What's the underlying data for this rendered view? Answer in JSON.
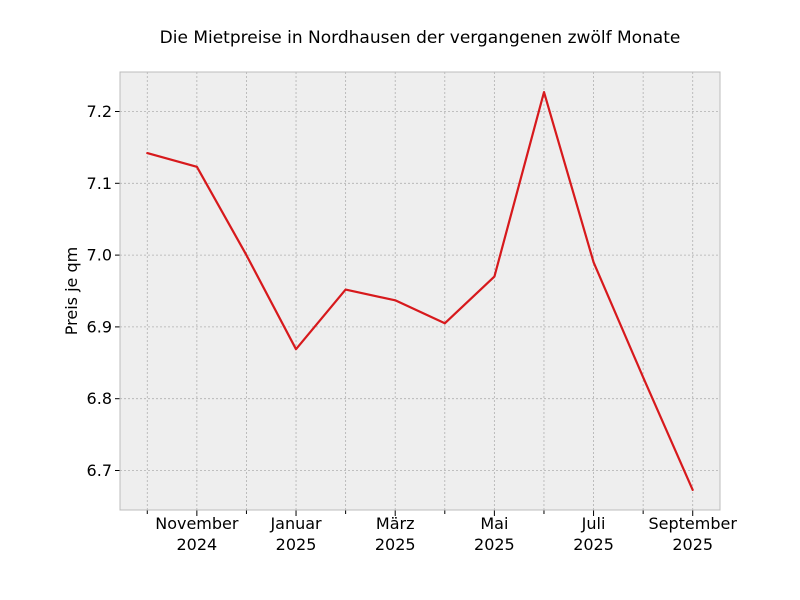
{
  "chart_data": {
    "type": "line",
    "title": "Die Mietpreise in Nordhausen der vergangenen zwölf Monate",
    "xlabel": "",
    "ylabel": "Preis je qm",
    "x": [
      "2024-10",
      "2024-11",
      "2024-12",
      "2025-01",
      "2025-02",
      "2025-03",
      "2025-04",
      "2025-05",
      "2025-06",
      "2025-07",
      "2025-08",
      "2025-09"
    ],
    "series": [
      {
        "values": [
          7.142,
          7.123,
          7.0,
          6.869,
          6.952,
          6.937,
          6.905,
          6.97,
          7.227,
          6.99,
          6.83,
          6.673
        ]
      }
    ],
    "x_tick_labels": [
      {
        "month": "November",
        "year": "2024"
      },
      {
        "month": "Januar",
        "year": "2025"
      },
      {
        "month": "März",
        "year": "2025"
      },
      {
        "month": "Mai",
        "year": "2025"
      },
      {
        "month": "Juli",
        "year": "2025"
      },
      {
        "month": "September",
        "year": "2025"
      }
    ],
    "y_ticks": [
      "6.7",
      "6.8",
      "6.9",
      "7.0",
      "7.1",
      "7.2"
    ],
    "ylim": [
      6.645,
      7.255
    ],
    "grid": true,
    "legend": "none",
    "colors": {
      "line": "#d7191c",
      "plot_background": "#eeeeee",
      "grid": "#b0b0b0",
      "frame": "#bcbcbc"
    }
  }
}
